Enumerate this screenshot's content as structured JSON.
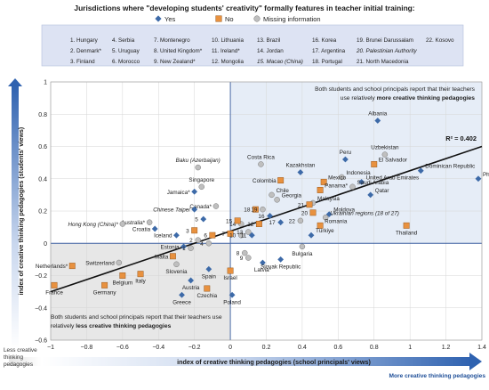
{
  "chart_data": {
    "type": "scatter",
    "title": "Jurisdictions where \"developing students' creativity\" formally features in teacher initial training:",
    "legend": [
      {
        "key": "yes",
        "label": "Yes",
        "shape": "diamond",
        "color": "#3d6aa8"
      },
      {
        "key": "no",
        "label": "No",
        "shape": "square",
        "color": "#e8913f"
      },
      {
        "key": "missing",
        "label": "Missing information",
        "shape": "circle",
        "color": "#bfbfbf"
      }
    ],
    "key_box": [
      [
        "1. Hungary",
        "2. Denmark*",
        "3. Finland"
      ],
      [
        "4. Serbia",
        "5. Uruguay",
        "6. Morocco"
      ],
      [
        "7. Montenegro",
        "8. United Kingdom*",
        "9. New Zealand*"
      ],
      [
        "10. Lithuania",
        "11. Ireland*",
        "12. Mongolia"
      ],
      [
        "13. Brazil",
        "14. Jordan",
        "15. Macao (China)"
      ],
      [
        "16. Korea",
        "17. Argentina",
        "18. Portugal"
      ],
      [
        "19. Brunei Darussalam",
        "20. Palestinian Authority",
        "21. North Macedonia"
      ],
      [
        "22. Kosovo"
      ]
    ],
    "xlabel": "index of creative thinking pedagogies (school principals' views)",
    "ylabel": "index of creative thinking pedagogies (students' views)",
    "xlim": [
      -1,
      1.4
    ],
    "ylim": [
      -0.6,
      1
    ],
    "x_ticks": [
      -1,
      -0.8,
      -0.6,
      -0.4,
      -0.2,
      0,
      0.2,
      0.4,
      0.6,
      0.8,
      1,
      1.2,
      1.4
    ],
    "y_ticks": [
      -0.6,
      -0.4,
      -0.2,
      0,
      0.2,
      0.4,
      0.6,
      0.8,
      1
    ],
    "x_tick_labels": [
      "−1",
      "−0.8",
      "−0.6",
      "−0.4",
      "−0.2",
      "0",
      "0.2",
      "0.4",
      "0.6",
      "0.8",
      "1",
      "1.2",
      "1.4"
    ],
    "y_tick_labels": [
      "−0.6",
      "−0.4",
      "−0.2",
      "0",
      "0.2",
      "0.4",
      "0.6",
      "0.8",
      "1"
    ],
    "x_axis_less": "Less creative thinking pedagogies",
    "x_axis_more": "More creative thinking pedagogies",
    "r_squared": "R² = 0.402",
    "trendline": {
      "x": [
        -1,
        1.4
      ],
      "y": [
        -0.3,
        0.6
      ]
    },
    "quadrant_top_right_note": "Both students and school principals report that their teachers use relatively more creative thinking pedagogies",
    "quadrant_bottom_left_note": "Both students and school principals report that their teachers use relatively less creative thinking pedagogies",
    "points": [
      {
        "label": "Albania",
        "x": 0.82,
        "y": 0.76,
        "cat": "yes"
      },
      {
        "label": "Uzbekistan",
        "x": 0.86,
        "y": 0.55,
        "cat": "missing"
      },
      {
        "label": "Peru",
        "x": 0.64,
        "y": 0.52,
        "cat": "yes"
      },
      {
        "label": "El Salvador",
        "x": 0.8,
        "y": 0.49,
        "cat": "no"
      },
      {
        "label": "Dominican Republic",
        "x": 1.06,
        "y": 0.45,
        "cat": "yes"
      },
      {
        "label": "Philippines",
        "x": 1.38,
        "y": 0.4,
        "cat": "yes"
      },
      {
        "label": "Indonesia",
        "x": 0.62,
        "y": 0.41,
        "cat": "missing"
      },
      {
        "label": "Kazakhstan",
        "x": 0.39,
        "y": 0.44,
        "cat": "yes"
      },
      {
        "label": "Costa Rica",
        "x": 0.17,
        "y": 0.49,
        "cat": "missing"
      },
      {
        "label": "Colombia",
        "x": 0.28,
        "y": 0.39,
        "cat": "no"
      },
      {
        "label": "Mexico",
        "x": 0.52,
        "y": 0.38,
        "cat": "no"
      },
      {
        "label": "United Arab Emirates",
        "x": 0.73,
        "y": 0.38,
        "cat": "yes"
      },
      {
        "label": "Saudi Arabia",
        "x": 0.68,
        "y": 0.35,
        "cat": "missing"
      },
      {
        "label": "Panama*",
        "x": 0.5,
        "y": 0.33,
        "cat": "no"
      },
      {
        "label": "Qatar",
        "x": 0.78,
        "y": 0.3,
        "cat": "yes"
      },
      {
        "label": "Chile",
        "x": 0.23,
        "y": 0.3,
        "cat": "missing"
      },
      {
        "label": "Georgia",
        "x": 0.26,
        "y": 0.27,
        "cat": "missing"
      },
      {
        "label": "Malaysia",
        "x": 0.46,
        "y": 0.25,
        "cat": "missing"
      },
      {
        "label": "Moldova",
        "x": 0.55,
        "y": 0.18,
        "cat": "yes"
      },
      {
        "label": "Ukrainian regions (18 of 27)",
        "x": 0.53,
        "y": 0.16,
        "cat": "missing"
      },
      {
        "label": "Thailand",
        "x": 0.98,
        "y": 0.11,
        "cat": "no"
      },
      {
        "label": "Romania",
        "x": 0.5,
        "y": 0.11,
        "cat": "no"
      },
      {
        "label": "Baku (Azerbaijan)",
        "x": -0.18,
        "y": 0.47,
        "cat": "missing"
      },
      {
        "label": "Singapore",
        "x": -0.16,
        "y": 0.35,
        "cat": "missing"
      },
      {
        "label": "Jamaica*",
        "x": -0.2,
        "y": 0.32,
        "cat": "yes"
      },
      {
        "label": "Canada*",
        "x": -0.08,
        "y": 0.23,
        "cat": "missing"
      },
      {
        "label": "Chinese Taipei",
        "x": -0.2,
        "y": 0.21,
        "cat": "yes"
      },
      {
        "label": "Australia*",
        "x": -0.45,
        "y": 0.13,
        "cat": "missing"
      },
      {
        "label": "Hong Kong (China)*",
        "x": -0.6,
        "y": 0.12,
        "cat": "missing"
      },
      {
        "label": "Croatia",
        "x": -0.42,
        "y": 0.09,
        "cat": "yes"
      },
      {
        "label": "Iceland",
        "x": -0.3,
        "y": 0.05,
        "cat": "yes"
      },
      {
        "label": "Estonia",
        "x": -0.26,
        "y": -0.02,
        "cat": "yes"
      },
      {
        "label": "Malta",
        "x": -0.32,
        "y": -0.08,
        "cat": "no"
      },
      {
        "label": "Switzerland",
        "x": -0.62,
        "y": -0.12,
        "cat": "missing"
      },
      {
        "label": "Netherlands*",
        "x": -0.88,
        "y": -0.14,
        "cat": "no"
      },
      {
        "label": "Slovenia",
        "x": -0.3,
        "y": -0.13,
        "cat": "missing"
      },
      {
        "label": "Belgium",
        "x": -0.6,
        "y": -0.2,
        "cat": "no"
      },
      {
        "label": "Italy",
        "x": -0.5,
        "y": -0.19,
        "cat": "no"
      },
      {
        "label": "Spain",
        "x": -0.12,
        "y": -0.16,
        "cat": "yes"
      },
      {
        "label": "Israel",
        "x": 0.0,
        "y": -0.17,
        "cat": "no"
      },
      {
        "label": "Austria",
        "x": -0.22,
        "y": -0.23,
        "cat": "yes"
      },
      {
        "label": "Germany",
        "x": -0.7,
        "y": -0.26,
        "cat": "no"
      },
      {
        "label": "France",
        "x": -0.98,
        "y": -0.26,
        "cat": "no"
      },
      {
        "label": "Czechia",
        "x": -0.13,
        "y": -0.28,
        "cat": "no"
      },
      {
        "label": "Greece",
        "x": -0.27,
        "y": -0.32,
        "cat": "yes"
      },
      {
        "label": "Poland",
        "x": 0.01,
        "y": -0.32,
        "cat": "yes"
      },
      {
        "label": "Latvia*",
        "x": 0.18,
        "y": -0.12,
        "cat": "yes"
      },
      {
        "label": "Slovak Republic",
        "x": 0.28,
        "y": -0.1,
        "cat": "yes"
      },
      {
        "label": "Bulgaria",
        "x": 0.4,
        "y": -0.02,
        "cat": "missing"
      },
      {
        "label": "Türkiye",
        "x": 0.45,
        "y": 0.05,
        "cat": "yes"
      },
      {
        "label": "1",
        "x": -0.22,
        "y": -0.03,
        "cat": "missing"
      },
      {
        "label": "2",
        "x": -0.18,
        "y": 0.02,
        "cat": "missing"
      },
      {
        "label": "3",
        "x": -0.2,
        "y": 0.08,
        "cat": "no"
      },
      {
        "label": "4",
        "x": -0.12,
        "y": 0.0,
        "cat": "missing"
      },
      {
        "label": "5",
        "x": -0.15,
        "y": 0.15,
        "cat": "yes"
      },
      {
        "label": "6",
        "x": -0.1,
        "y": 0.05,
        "cat": "no"
      },
      {
        "label": "7",
        "x": 0.0,
        "y": 0.06,
        "cat": "no"
      },
      {
        "label": "8",
        "x": 0.08,
        "y": -0.06,
        "cat": "missing"
      },
      {
        "label": "9",
        "x": 0.1,
        "y": -0.09,
        "cat": "missing"
      },
      {
        "label": "10",
        "x": 0.06,
        "y": 0.05,
        "cat": "missing"
      },
      {
        "label": "11",
        "x": 0.12,
        "y": 0.05,
        "cat": "yes"
      },
      {
        "label": "12",
        "x": 0.16,
        "y": 0.12,
        "cat": "no"
      },
      {
        "label": "13",
        "x": 0.1,
        "y": 0.07,
        "cat": "missing"
      },
      {
        "label": "14",
        "x": 0.06,
        "y": 0.12,
        "cat": "missing"
      },
      {
        "label": "15",
        "x": 0.04,
        "y": 0.14,
        "cat": "no"
      },
      {
        "label": "16",
        "x": 0.22,
        "y": 0.17,
        "cat": "yes"
      },
      {
        "label": "17",
        "x": 0.28,
        "y": 0.13,
        "cat": "yes"
      },
      {
        "label": "18",
        "x": 0.14,
        "y": 0.21,
        "cat": "no"
      },
      {
        "label": "19",
        "x": 0.18,
        "y": 0.21,
        "cat": "missing"
      },
      {
        "label": "20",
        "x": 0.46,
        "y": 0.19,
        "cat": "no"
      },
      {
        "label": "21",
        "x": 0.44,
        "y": 0.24,
        "cat": "no"
      },
      {
        "label": "22",
        "x": 0.39,
        "y": 0.14,
        "cat": "missing"
      }
    ]
  }
}
